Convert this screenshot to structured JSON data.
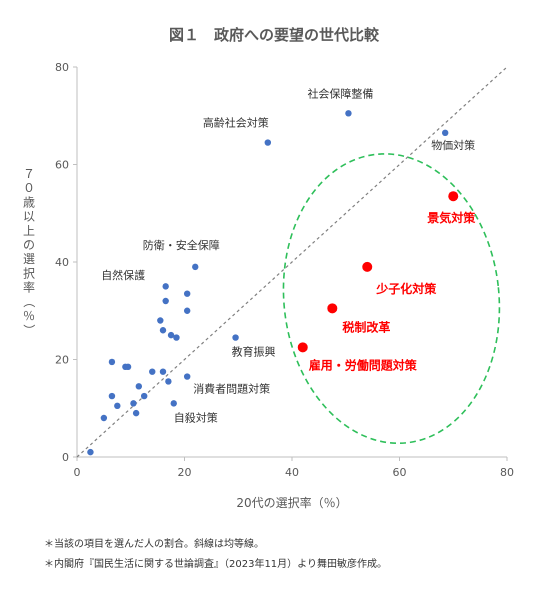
{
  "chart_data": {
    "type": "scatter",
    "title": "図１　政府への要望の世代比較",
    "xlabel": "20代の選択率（％）",
    "ylabel": "７０歳以上の選択率（％）",
    "xlim": [
      0,
      80
    ],
    "ylim": [
      0,
      80
    ],
    "x_ticks": [
      "0",
      "20",
      "40",
      "60",
      "80"
    ],
    "y_ticks": [
      "0",
      "20",
      "40",
      "60",
      "80"
    ],
    "grid": false,
    "reference_line": "y = x (dotted)",
    "colors": {
      "blue": "#4472C4",
      "red": "#FF0000",
      "ellipse": "#2EBF5A",
      "axis": "#BFBFBF"
    },
    "labeled_points": [
      {
        "label": "社会保障整備",
        "x": 50.5,
        "y": 70.5,
        "color": "blue"
      },
      {
        "label": "高齢社会対策",
        "x": 35.5,
        "y": 64.5,
        "color": "blue"
      },
      {
        "label": "物価対策",
        "x": 68.5,
        "y": 66.5,
        "color": "blue"
      },
      {
        "label": "防衛・安全保障",
        "x": 22,
        "y": 39,
        "color": "blue"
      },
      {
        "label": "教育振興",
        "x": 29.5,
        "y": 24.5,
        "color": "blue"
      },
      {
        "label": "消費者問題対策",
        "x": 20.5,
        "y": 16.5,
        "color": "blue"
      },
      {
        "label": "自殺対策",
        "x": 18,
        "y": 11,
        "color": "blue"
      },
      {
        "label": "景気対策",
        "x": 70,
        "y": 53.5,
        "color": "red"
      },
      {
        "label": "少子化対策",
        "x": 54,
        "y": 39,
        "color": "red"
      },
      {
        "label": "税制改革",
        "x": 47.5,
        "y": 30.5,
        "color": "red"
      },
      {
        "label": "雇用・労働問題対策",
        "x": 42,
        "y": 22.5,
        "color": "red"
      }
    ],
    "annotations": [
      "自然保護"
    ],
    "unlabeled_points": [
      [
        2.5,
        1
      ],
      [
        5,
        8
      ],
      [
        6.5,
        12.5
      ],
      [
        7.5,
        10.5
      ],
      [
        6.5,
        19.5
      ],
      [
        9,
        18.5
      ],
      [
        9.5,
        18.5
      ],
      [
        10.5,
        11
      ],
      [
        11,
        9
      ],
      [
        11.5,
        14.5
      ],
      [
        12.5,
        12.5
      ],
      [
        14,
        17.5
      ],
      [
        16,
        17.5
      ],
      [
        15.5,
        28
      ],
      [
        16,
        26
      ],
      [
        16.5,
        35
      ],
      [
        16.5,
        32
      ],
      [
        17,
        15.5
      ],
      [
        17.5,
        25
      ],
      [
        18.5,
        24.5
      ],
      [
        20.5,
        30
      ],
      [
        20.5,
        33.5
      ]
    ]
  },
  "notes": [
    "＊当該の項目を選んだ人の割合。斜線は均等線。",
    "＊内閣府『国民生活に関する世論調査』（2023年11月）より舞田敏彦作成。"
  ]
}
